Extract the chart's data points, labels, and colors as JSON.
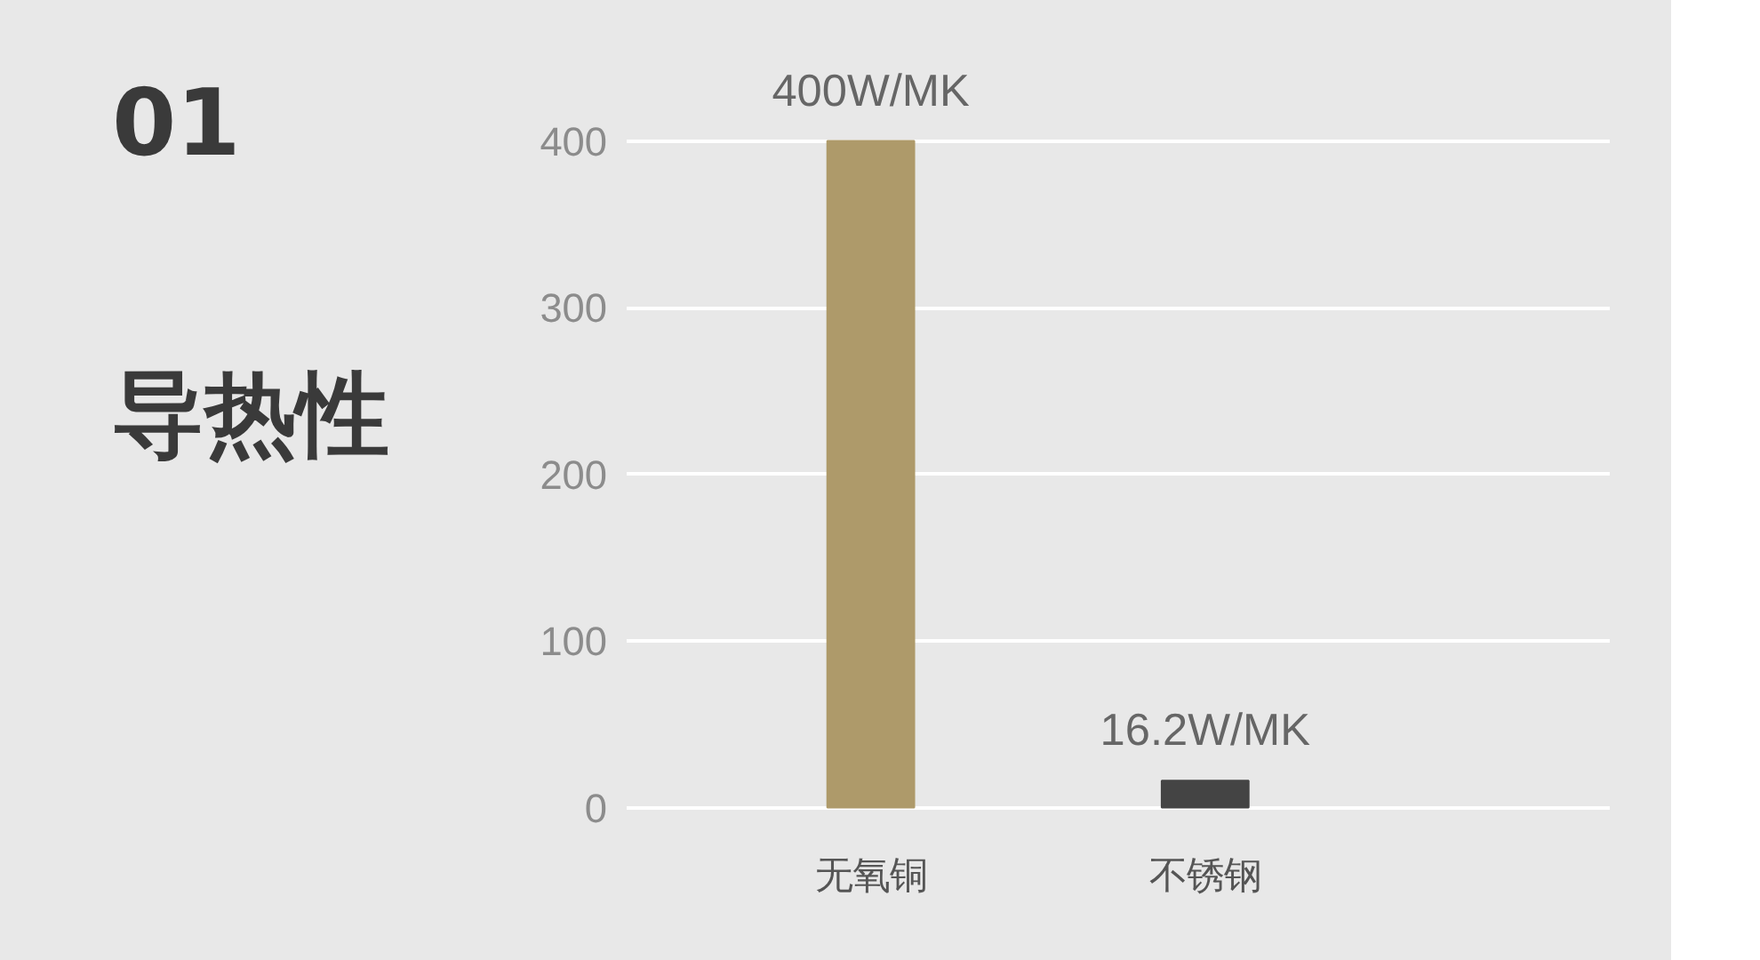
{
  "chart_data": {
    "type": "bar",
    "title": "01",
    "subtitle": "导热性",
    "categories": [
      "无氧铜",
      "不锈钢"
    ],
    "values": [
      400,
      16.2
    ],
    "colors": [
      "#ae9a6a",
      "#444444"
    ],
    "value_labels": [
      "400W/MK",
      "16.2W/MK"
    ],
    "ylim": [
      0,
      400
    ],
    "yticks": [
      0,
      100,
      200,
      300,
      400
    ],
    "grid": "y"
  }
}
